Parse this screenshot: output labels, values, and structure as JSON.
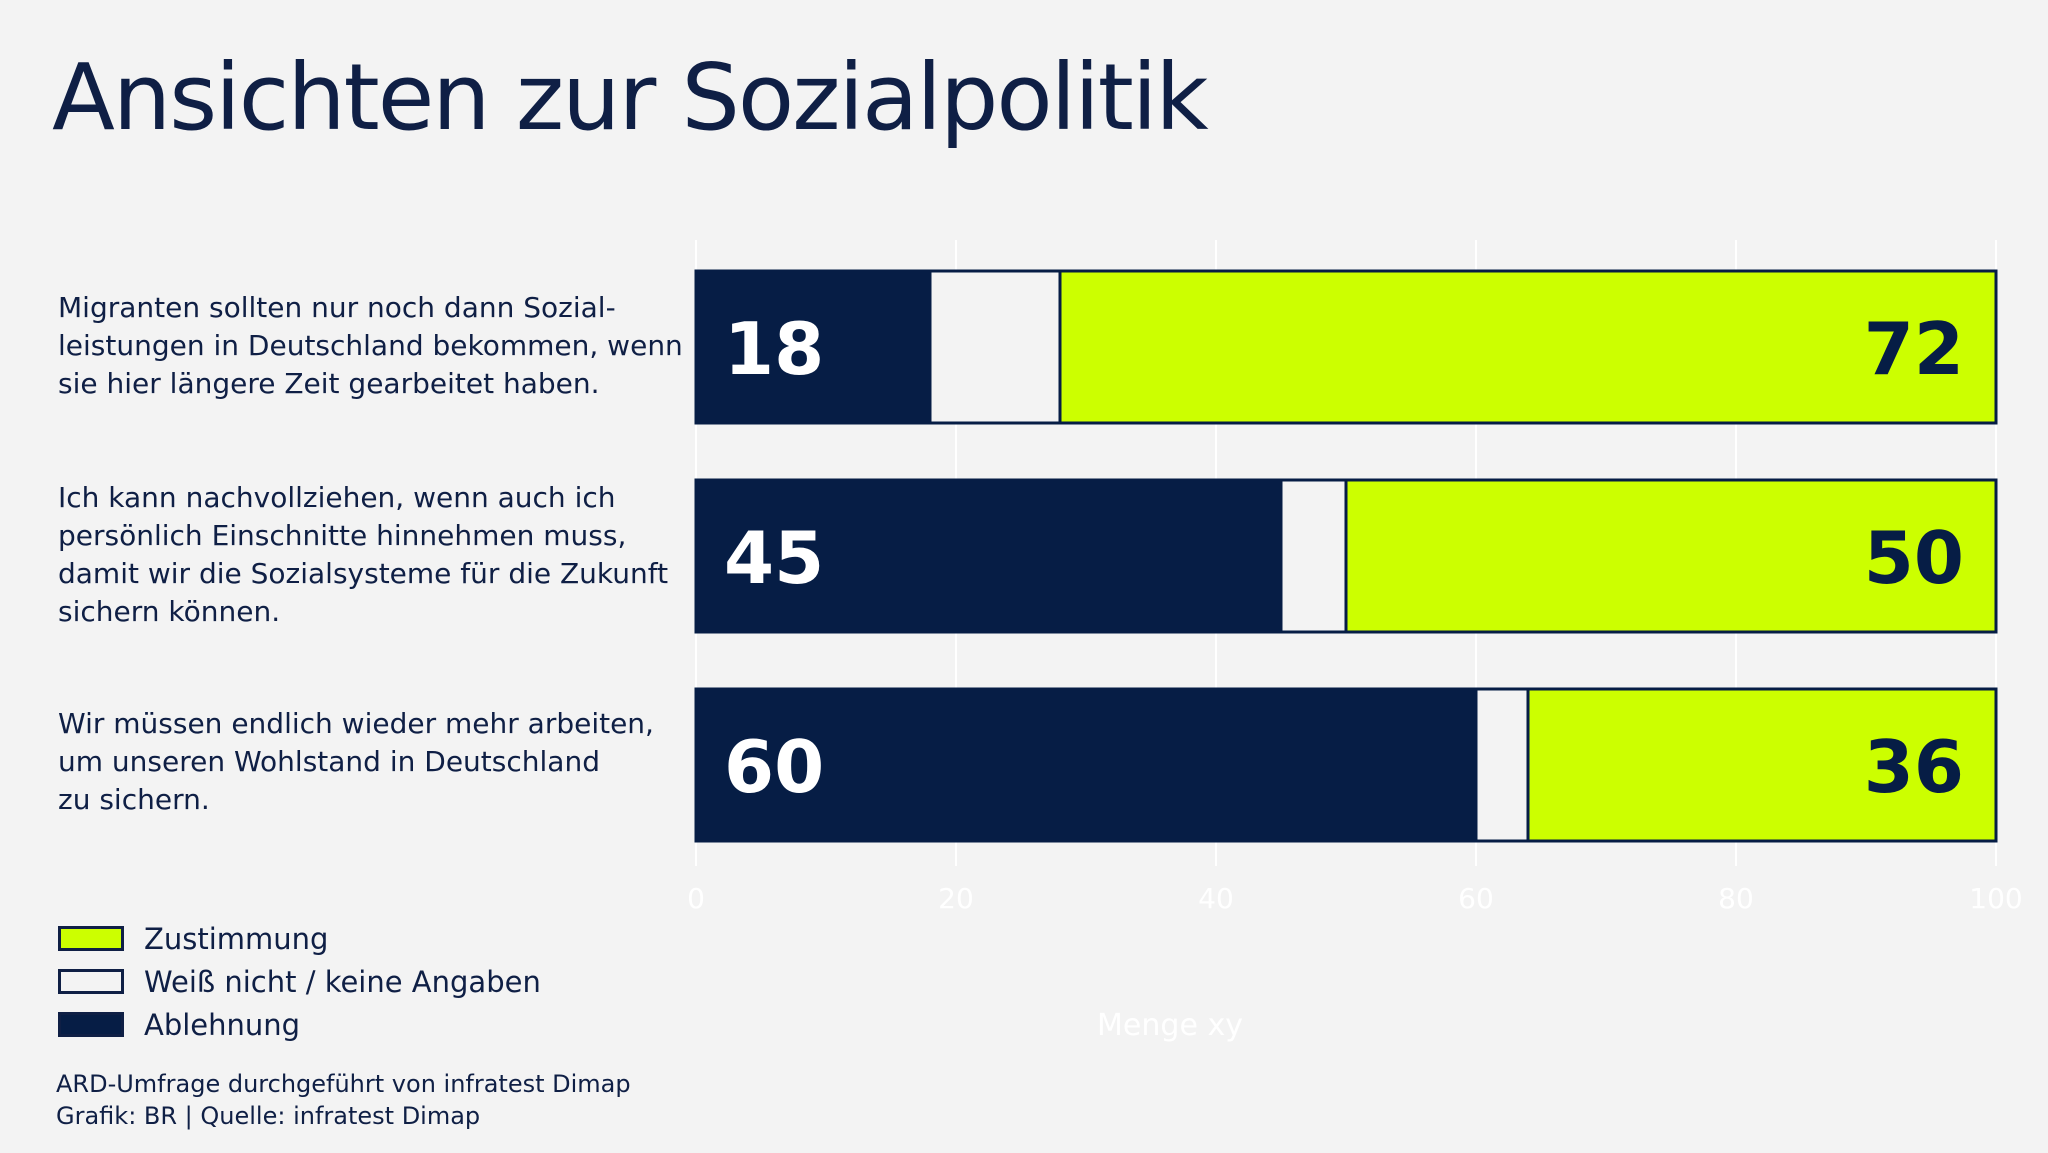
{
  "title": "Ansichten zur Sozialpolitik",
  "chart_data": {
    "type": "bar",
    "orientation": "horizontal",
    "stacked": true,
    "categories": [
      "Migranten sollten nur noch dann Sozial-leistungen in Deutschland bekommen, wenn sie hier längere Zeit gearbeitet haben.",
      "Ich kann nachvollziehen, wenn auch ich persönlich Einschnitte hinnehmen muss, damit wir die Sozialsysteme für die Zukunft sichern können.",
      "Wir müssen endlich wieder mehr arbeiten, um unseren Wohlstand in Deutschland zu sichern."
    ],
    "category_lines": [
      [
        "Migranten sollten nur noch dann Sozial-",
        "leistungen in Deutschland bekommen, wenn",
        "sie hier längere Zeit gearbeitet haben."
      ],
      [
        "Ich kann nachvollziehen, wenn auch ich",
        "persönlich Einschnitte hinnehmen muss,",
        "damit wir die Sozialsysteme für die Zukunft",
        "sichern können."
      ],
      [
        "Wir müssen endlich wieder mehr arbeiten,",
        "um unseren Wohlstand in Deutschland",
        "zu sichern."
      ]
    ],
    "series": [
      {
        "name": "Ablehnung",
        "values": [
          18,
          45,
          60
        ],
        "color": "#061d45",
        "show_labels": true
      },
      {
        "name": "Weiß nicht / keine Angaben",
        "values": [
          10,
          5,
          4
        ],
        "color": "#f3f3f3",
        "show_labels": false
      },
      {
        "name": "Zustimmung",
        "values": [
          72,
          50,
          36
        ],
        "color": "#ccff00",
        "show_labels": true
      }
    ],
    "xlim": [
      0,
      100
    ],
    "xticks": [
      0,
      20,
      40,
      60,
      80,
      100
    ],
    "xlabel": "Menge xy",
    "grid": true,
    "legend": [
      {
        "name": "Zustimmung",
        "color": "#ccff00"
      },
      {
        "name": "Weiß nicht / keine Angaben",
        "color": "#f3f3f3"
      },
      {
        "name": "Ablehnung",
        "color": "#061d45"
      }
    ],
    "legend_position": "bottom-left"
  },
  "footer": {
    "line1": "ARD-Umfrage durchgeführt von infratest Dimap",
    "line2": "Grafik: BR | Quelle: infratest Dimap"
  }
}
